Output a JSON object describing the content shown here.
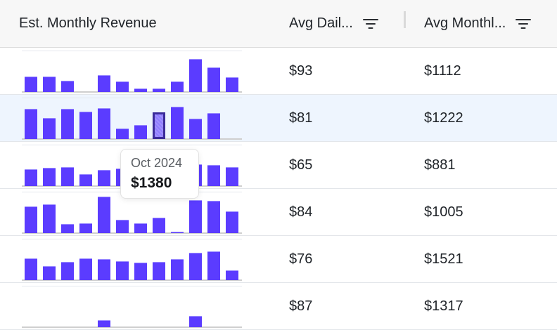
{
  "table": {
    "columns": [
      {
        "label": "Est. Monthly Revenue",
        "filterable": false
      },
      {
        "label": "Avg Dail...",
        "filterable": true,
        "icon": "filter-icon"
      },
      {
        "label": "Avg Monthl...",
        "filterable": true,
        "icon": "filter-icon"
      }
    ],
    "rows": [
      {
        "avg_daily": "$93",
        "avg_monthly": "$1112",
        "bars": [
          22,
          22,
          16,
          0,
          24,
          15,
          5,
          5,
          15,
          47,
          35,
          21
        ],
        "active_bar": -1,
        "highlighted": false
      },
      {
        "avg_daily": "$81",
        "avg_monthly": "$1222",
        "bars": [
          43,
          30,
          43,
          39,
          44,
          15,
          20,
          38,
          46,
          29,
          37,
          0
        ],
        "active_bar": 7,
        "highlighted": true
      },
      {
        "avg_daily": "$65",
        "avg_monthly": "$881",
        "bars": [
          24,
          26,
          27,
          17,
          23,
          25,
          28,
          30,
          32,
          31,
          30,
          27
        ],
        "active_bar": -1,
        "highlighted": false
      },
      {
        "avg_daily": "$84",
        "avg_monthly": "$1005",
        "bars": [
          38,
          41,
          13,
          14,
          52,
          19,
          14,
          22,
          2,
          47,
          46,
          31
        ],
        "active_bar": -1,
        "highlighted": false
      },
      {
        "avg_daily": "$76",
        "avg_monthly": "$1521",
        "bars": [
          31,
          20,
          26,
          31,
          30,
          27,
          25,
          26,
          30,
          39,
          41,
          14
        ],
        "active_bar": -1,
        "highlighted": false
      },
      {
        "avg_daily": "$87",
        "avg_monthly": "$1317",
        "bars": [
          0,
          0,
          0,
          0,
          10,
          0,
          0,
          0,
          0,
          16,
          0,
          0
        ],
        "active_bar": -1,
        "highlighted": false
      }
    ]
  },
  "tooltip": {
    "month": "Oct 2024",
    "value": "$1380"
  },
  "colors": {
    "bar": "#5b3cff",
    "highlight_row": "#eef5fe",
    "header_bg": "#f7f7f7"
  }
}
